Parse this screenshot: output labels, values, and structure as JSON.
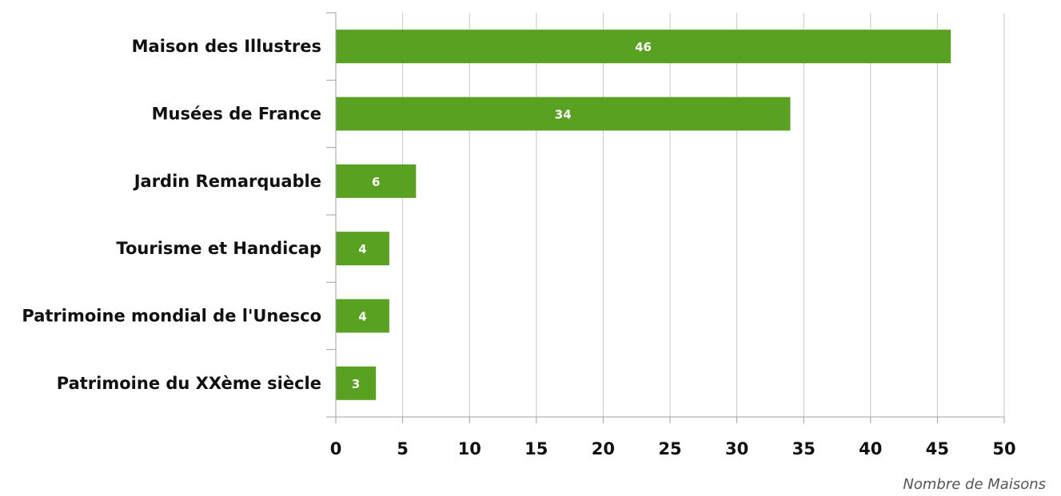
{
  "chart_data": {
    "type": "bar",
    "orientation": "horizontal",
    "categories": [
      "Maison des Illustres",
      "Musées de France",
      "Jardin Remarquable",
      "Tourisme et Handicap",
      "Patrimoine mondial de l'Unesco",
      "Patrimoine du XXème siècle"
    ],
    "values": [
      46,
      34,
      6,
      4,
      4,
      3
    ],
    "data_labels": [
      "46",
      "34",
      "6",
      "4",
      "4",
      "3"
    ],
    "xlabel": "Nombre de Maisons",
    "ylabel": "",
    "xlim": [
      0,
      50
    ],
    "xticks": [
      0,
      5,
      10,
      15,
      20,
      25,
      30,
      35,
      40,
      45,
      50
    ],
    "xtick_labels": [
      "0",
      "5",
      "10",
      "15",
      "20",
      "25",
      "30",
      "35",
      "40",
      "45",
      "50"
    ],
    "grid": "vertical",
    "legend": "none",
    "bar_color": "#58a121",
    "label_color": "#ffffff"
  }
}
